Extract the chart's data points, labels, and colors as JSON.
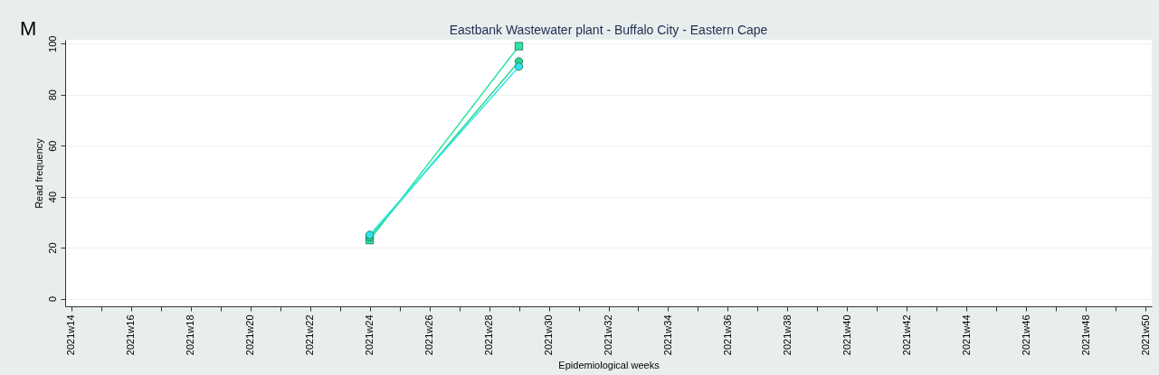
{
  "chart_data": {
    "type": "line",
    "title": "Eastbank Wastewater plant - Buffalo City - Eastern Cape",
    "xlabel": "Epidemiological weeks",
    "ylabel": "Read frequency",
    "annotations": [
      "M"
    ],
    "categories": [
      "2021w14",
      null,
      "2021w16",
      null,
      "2021w18",
      null,
      "2021w20",
      null,
      "2021w22",
      null,
      "2021w24",
      null,
      "2021w26",
      null,
      "2021w28",
      null,
      "2021w30",
      null,
      "2021w32",
      null,
      "2021w34",
      null,
      "2021w36",
      null,
      "2021w38",
      null,
      "2021w40",
      null,
      "2021w42",
      null,
      "2021w44",
      null,
      "2021w46",
      null,
      "2021w48",
      null,
      "2021w50"
    ],
    "series": [
      {
        "color": "#2ee6a0",
        "marker": "square",
        "values": [
          null,
          null,
          null,
          null,
          null,
          null,
          null,
          null,
          null,
          null,
          23,
          null,
          null,
          null,
          null,
          99,
          null,
          null,
          null,
          null,
          null,
          null,
          null,
          null,
          null,
          null,
          null,
          null,
          null,
          null,
          null,
          null,
          null,
          null,
          null,
          null,
          null
        ]
      },
      {
        "color": "#25d98a",
        "marker": "circle",
        "values": [
          null,
          null,
          null,
          null,
          null,
          null,
          null,
          null,
          null,
          null,
          24,
          null,
          null,
          null,
          null,
          93,
          null,
          null,
          null,
          null,
          null,
          null,
          null,
          null,
          null,
          null,
          null,
          null,
          null,
          null,
          null,
          null,
          null,
          null,
          null,
          null,
          null
        ]
      },
      {
        "color": "#2fe3ec",
        "marker": "circle",
        "values": [
          null,
          null,
          null,
          null,
          null,
          null,
          null,
          null,
          null,
          null,
          25,
          null,
          null,
          null,
          null,
          91,
          null,
          null,
          null,
          null,
          null,
          null,
          null,
          null,
          null,
          null,
          null,
          null,
          null,
          null,
          null,
          null,
          null,
          null,
          null,
          null,
          null
        ]
      }
    ],
    "ylim": [
      -3,
      101.5
    ],
    "yticks": [
      0,
      20,
      40,
      60,
      80,
      100
    ],
    "grid": "y",
    "line_style": "solid"
  }
}
